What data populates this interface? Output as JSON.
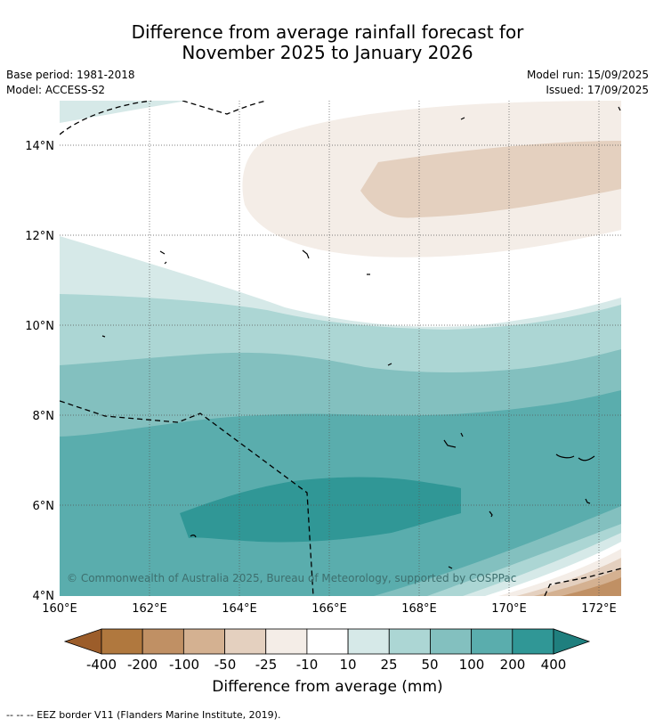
{
  "title": {
    "line1": "Difference from average rainfall forecast for",
    "line2": "November 2025 to January 2026"
  },
  "meta": {
    "base_period": "Base period: 1981-2018",
    "model": "Model: ACCESS-S2",
    "model_run": "Model run: 15/09/2025",
    "issued": "Issued: 17/09/2025"
  },
  "map": {
    "lat_labels": [
      "14°N",
      "12°N",
      "10°N",
      "8°N",
      "6°N",
      "4°N"
    ],
    "lon_labels": [
      "160°E",
      "162°E",
      "164°E",
      "166°E",
      "168°E",
      "170°E",
      "172°E"
    ],
    "copyright": "© Commonwealth of Australia 2025, Bureau of Meteorology, supported by COSPPac",
    "gridlines": true
  },
  "colorbar": {
    "title": "Difference from average (mm)",
    "ticks": [
      "-400",
      "-200",
      "-100",
      "-50",
      "-25",
      "-10",
      "10",
      "25",
      "50",
      "100",
      "200",
      "400"
    ],
    "colors": {
      "lt_minus400": "#9c5d2a",
      "m400_m200": "#b0783e",
      "m200_m100": "#c09064",
      "m100_m50": "#d4b191",
      "m50_m25": "#e4d0bf",
      "m25_m10": "#f4ede7",
      "m10_10": "#ffffff",
      "b10_25": "#d6e9e8",
      "b25_50": "#acd6d4",
      "b50_100": "#83c0bf",
      "b100_200": "#5aadad",
      "b200_400": "#309796",
      "gt_400": "#1f7f7e"
    }
  },
  "footer": "--  --  -- EEZ border V11 (Flanders Marine Institute, 2019)."
}
